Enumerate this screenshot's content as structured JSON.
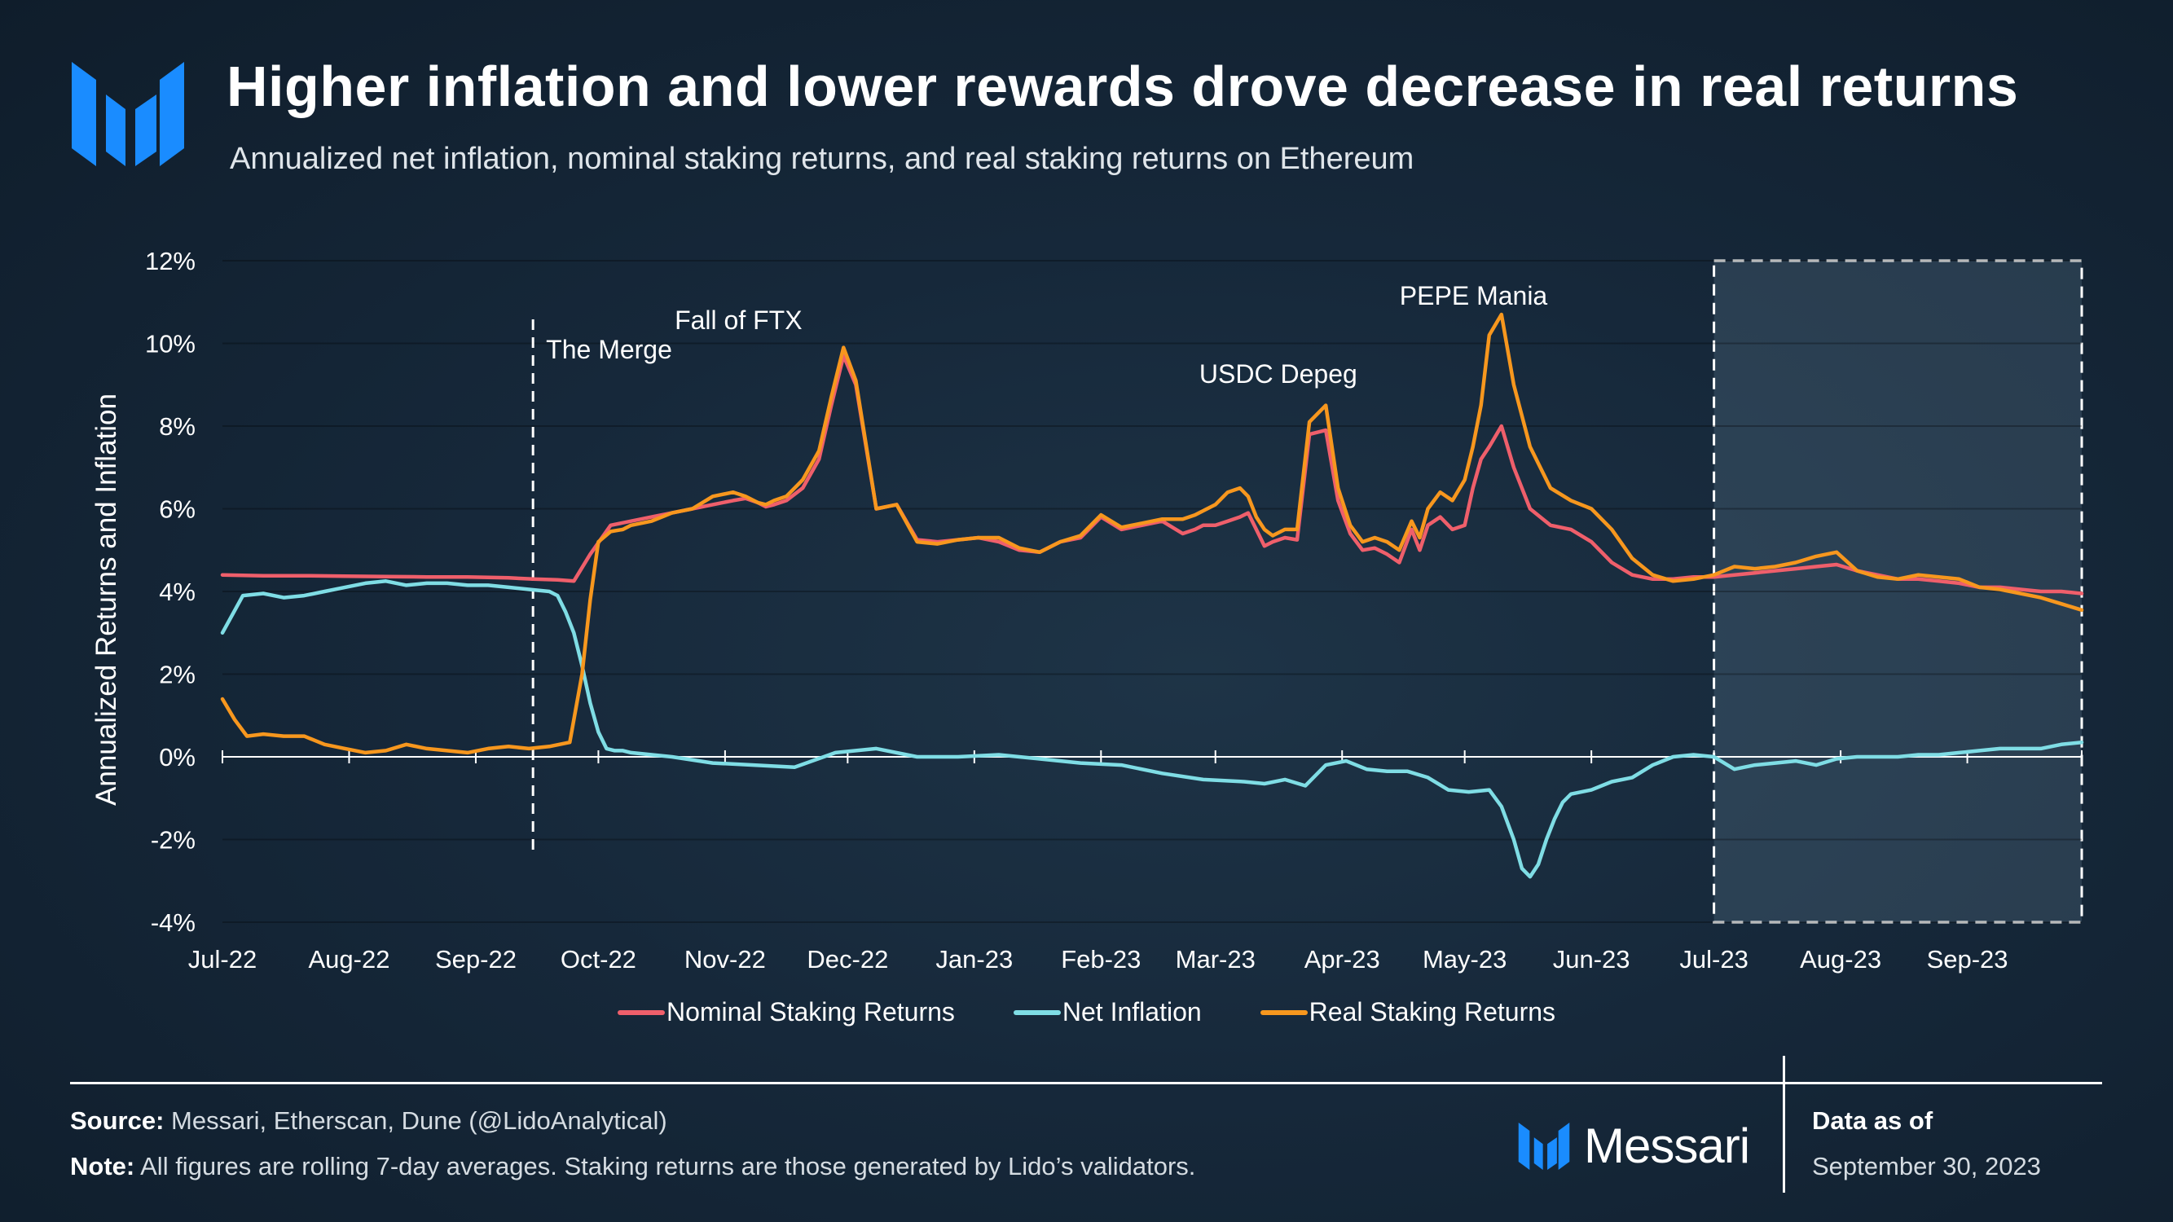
{
  "header": {
    "title": "Higher inflation and lower rewards drove decrease in real returns",
    "subtitle": "Annualized net inflation, nominal staking returns, and real staking returns on Ethereum"
  },
  "colors": {
    "nominal": "#ef5f6b",
    "inflation": "#7fdde5",
    "real": "#f7971e",
    "brand": "#1a8cff"
  },
  "chart_data": {
    "type": "line",
    "title": "Higher inflation and lower rewards drove decrease in real returns",
    "ylabel": "Annualized Returns and Inflation",
    "xlabel": "",
    "ylim": [
      -4,
      12
    ],
    "yticks": [
      -4,
      -2,
      0,
      2,
      4,
      6,
      8,
      10,
      12
    ],
    "ytick_labels": [
      "-4%",
      "-2%",
      "0%",
      "2%",
      "4%",
      "6%",
      "8%",
      "10%",
      "12%"
    ],
    "xlim_days": [
      0,
      455
    ],
    "xtick_days": [
      0,
      31,
      62,
      92,
      123,
      153,
      184,
      215,
      243,
      274,
      304,
      335,
      365,
      396,
      427
    ],
    "xtick_labels": [
      "Jul-22",
      "Aug-22",
      "Sep-22",
      "Oct-22",
      "Nov-22",
      "Dec-22",
      "Jan-23",
      "Feb-23",
      "Mar-23",
      "Apr-23",
      "May-23",
      "Jun-23",
      "Jul-23",
      "Aug-23",
      "Sep-23"
    ],
    "x_note": "x values are days since 2022-07-01",
    "series": [
      {
        "name": "Nominal Staking Returns",
        "color": "#ef5f6b",
        "x": [
          0,
          10,
          20,
          30,
          40,
          50,
          60,
          70,
          76,
          82,
          86,
          90,
          95,
          100,
          105,
          110,
          115,
          120,
          125,
          128,
          131,
          133,
          135,
          138,
          142,
          146,
          149,
          152,
          155,
          160,
          165,
          170,
          175,
          180,
          185,
          190,
          195,
          200,
          205,
          210,
          215,
          220,
          225,
          230,
          235,
          238,
          240,
          243,
          246,
          249,
          251,
          253,
          255,
          257,
          260,
          263,
          266,
          270,
          273,
          276,
          279,
          282,
          285,
          288,
          291,
          293,
          295,
          298,
          301,
          304,
          306,
          308,
          310,
          313,
          316,
          320,
          325,
          330,
          335,
          340,
          345,
          350,
          355,
          360,
          365,
          370,
          375,
          380,
          385,
          390,
          395,
          400,
          405,
          410,
          415,
          420,
          425,
          430,
          435,
          440,
          445,
          450,
          455
        ],
        "values": [
          4.4,
          4.38,
          4.38,
          4.37,
          4.36,
          4.35,
          4.35,
          4.33,
          4.3,
          4.28,
          4.25,
          4.9,
          5.6,
          5.7,
          5.8,
          5.9,
          6.0,
          6.1,
          6.2,
          6.25,
          6.15,
          6.05,
          6.1,
          6.2,
          6.5,
          7.2,
          8.5,
          9.7,
          9.0,
          6.0,
          6.1,
          5.25,
          5.2,
          5.25,
          5.3,
          5.2,
          5.0,
          4.95,
          5.2,
          5.3,
          5.8,
          5.5,
          5.6,
          5.7,
          5.4,
          5.5,
          5.6,
          5.6,
          5.7,
          5.8,
          5.9,
          5.5,
          5.1,
          5.2,
          5.3,
          5.25,
          7.8,
          7.9,
          6.2,
          5.4,
          5.0,
          5.05,
          4.9,
          4.7,
          5.5,
          5.0,
          5.6,
          5.8,
          5.5,
          5.6,
          6.5,
          7.2,
          7.5,
          8.0,
          7.0,
          6.0,
          5.6,
          5.5,
          5.2,
          4.7,
          4.4,
          4.3,
          4.3,
          4.35,
          4.35,
          4.4,
          4.45,
          4.5,
          4.55,
          4.6,
          4.65,
          4.5,
          4.4,
          4.3,
          4.3,
          4.25,
          4.2,
          4.1,
          4.1,
          4.05,
          4.0,
          4.0,
          3.95
        ]
      },
      {
        "name": "Net Inflation",
        "color": "#7fdde5",
        "x": [
          0,
          5,
          10,
          15,
          20,
          25,
          30,
          35,
          40,
          45,
          50,
          55,
          60,
          65,
          70,
          75,
          80,
          82,
          84,
          86,
          88,
          90,
          92,
          94,
          96,
          98,
          100,
          110,
          120,
          130,
          140,
          150,
          160,
          170,
          180,
          190,
          200,
          210,
          220,
          230,
          240,
          250,
          255,
          260,
          265,
          270,
          275,
          280,
          285,
          290,
          295,
          300,
          305,
          310,
          313,
          316,
          318,
          320,
          322,
          324,
          326,
          328,
          330,
          335,
          340,
          345,
          350,
          355,
          360,
          365,
          370,
          375,
          380,
          385,
          390,
          395,
          400,
          405,
          410,
          415,
          420,
          425,
          430,
          435,
          440,
          445,
          450,
          455
        ],
        "values": [
          3.0,
          3.9,
          3.95,
          3.85,
          3.9,
          4.0,
          4.1,
          4.2,
          4.25,
          4.15,
          4.2,
          4.2,
          4.15,
          4.15,
          4.1,
          4.05,
          4.0,
          3.9,
          3.5,
          3.0,
          2.2,
          1.3,
          0.6,
          0.2,
          0.15,
          0.15,
          0.1,
          0.0,
          -0.15,
          -0.2,
          -0.25,
          0.1,
          0.2,
          0.0,
          0.0,
          0.05,
          -0.05,
          -0.15,
          -0.2,
          -0.4,
          -0.55,
          -0.6,
          -0.65,
          -0.55,
          -0.7,
          -0.2,
          -0.1,
          -0.3,
          -0.35,
          -0.35,
          -0.5,
          -0.8,
          -0.85,
          -0.8,
          -1.2,
          -2.0,
          -2.7,
          -2.9,
          -2.6,
          -2.0,
          -1.5,
          -1.1,
          -0.9,
          -0.8,
          -0.6,
          -0.5,
          -0.2,
          0.0,
          0.05,
          0.0,
          -0.3,
          -0.2,
          -0.15,
          -0.1,
          -0.2,
          -0.05,
          0.0,
          0.0,
          0.0,
          0.05,
          0.05,
          0.1,
          0.15,
          0.2,
          0.2,
          0.2,
          0.3,
          0.35
        ]
      },
      {
        "name": "Real Staking Returns",
        "color": "#f7971e",
        "x": [
          0,
          3,
          6,
          10,
          15,
          20,
          25,
          30,
          35,
          40,
          45,
          50,
          55,
          60,
          65,
          70,
          75,
          80,
          85,
          88,
          90,
          92,
          95,
          98,
          100,
          105,
          110,
          115,
          120,
          125,
          128,
          131,
          133,
          135,
          138,
          142,
          146,
          149,
          152,
          155,
          160,
          165,
          170,
          175,
          180,
          185,
          190,
          195,
          200,
          205,
          210,
          215,
          220,
          225,
          230,
          235,
          238,
          240,
          243,
          246,
          249,
          251,
          253,
          255,
          257,
          260,
          263,
          266,
          270,
          273,
          276,
          279,
          282,
          285,
          288,
          291,
          293,
          295,
          298,
          301,
          304,
          306,
          308,
          310,
          313,
          316,
          320,
          325,
          330,
          335,
          340,
          345,
          350,
          355,
          360,
          365,
          370,
          375,
          380,
          385,
          390,
          395,
          400,
          405,
          410,
          415,
          420,
          425,
          430,
          435,
          440,
          445,
          450,
          455
        ],
        "values": [
          1.4,
          0.9,
          0.5,
          0.55,
          0.5,
          0.5,
          0.3,
          0.2,
          0.1,
          0.15,
          0.3,
          0.2,
          0.15,
          0.1,
          0.2,
          0.25,
          0.2,
          0.25,
          0.35,
          2.0,
          3.8,
          5.2,
          5.45,
          5.5,
          5.6,
          5.7,
          5.9,
          6.0,
          6.3,
          6.4,
          6.3,
          6.15,
          6.1,
          6.2,
          6.3,
          6.7,
          7.4,
          8.7,
          9.9,
          9.1,
          6.0,
          6.1,
          5.2,
          5.15,
          5.25,
          5.3,
          5.3,
          5.05,
          4.95,
          5.2,
          5.35,
          5.85,
          5.55,
          5.65,
          5.75,
          5.75,
          5.85,
          5.95,
          6.1,
          6.4,
          6.5,
          6.3,
          5.8,
          5.5,
          5.35,
          5.5,
          5.5,
          8.1,
          8.5,
          6.5,
          5.6,
          5.2,
          5.3,
          5.2,
          5.0,
          5.7,
          5.3,
          6.0,
          6.4,
          6.2,
          6.7,
          7.5,
          8.5,
          10.2,
          10.7,
          9.0,
          7.5,
          6.5,
          6.2,
          6.0,
          5.5,
          4.8,
          4.4,
          4.25,
          4.3,
          4.4,
          4.6,
          4.55,
          4.6,
          4.7,
          4.85,
          4.95,
          4.5,
          4.35,
          4.3,
          4.4,
          4.35,
          4.3,
          4.1,
          4.05,
          3.95,
          3.85,
          3.7,
          3.55
        ]
      }
    ],
    "annotations": [
      {
        "label": "The Merge",
        "day": 76,
        "type": "vline"
      },
      {
        "label": "Fall of FTX",
        "day": 135
      },
      {
        "label": "USDC Depeg",
        "day": 255
      },
      {
        "label": "PEPE Mania",
        "day": 312
      }
    ],
    "highlight_range_days": [
      365,
      455
    ]
  },
  "legend": [
    {
      "label": "Nominal Staking Returns",
      "color": "#ef5f6b"
    },
    {
      "label": "Net Inflation",
      "color": "#7fdde5"
    },
    {
      "label": "Real Staking Returns",
      "color": "#f7971e"
    }
  ],
  "footer": {
    "source_label": "Source:",
    "source_text": "Messari, Etherscan, Dune (@LidoAnalytical)",
    "note_label": "Note:",
    "note_text": "All figures are rolling 7-day averages. Staking returns are those generated by Lido’s validators.",
    "brand": "Messari",
    "asof_label": "Data as of",
    "asof_date": "September 30, 2023"
  }
}
